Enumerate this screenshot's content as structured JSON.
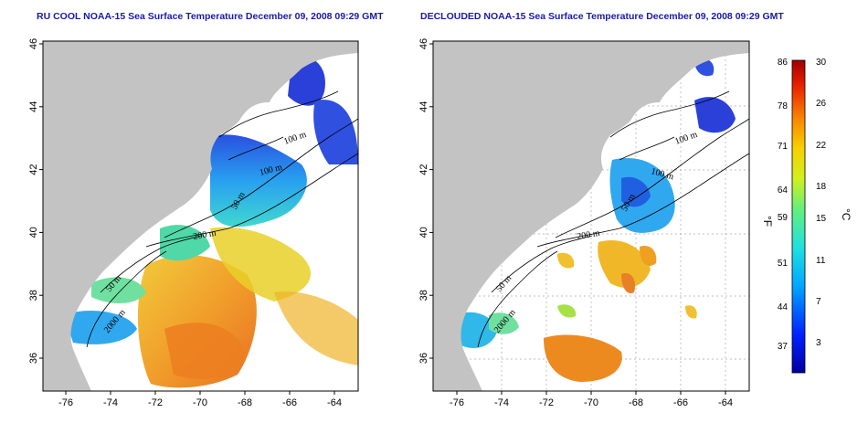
{
  "panels": [
    {
      "title": "RU COOL NOAA-15 Sea Surface Temperature December 09, 2008 09:29 GMT",
      "contour_labels": [
        "100 m",
        "100 m",
        "50 m",
        "200 m",
        "50 m",
        "2000 m"
      ]
    },
    {
      "title": "DECLOUDED NOAA-15 Sea Surface Temperature December 09, 2008 09:29 GMT",
      "contour_labels": [
        "100 m",
        "100 m",
        "50 m",
        "200 m",
        "50 m",
        "2000 m"
      ]
    }
  ],
  "axes": {
    "lon_ticks": [
      "-76",
      "-74",
      "-72",
      "-70",
      "-68",
      "-66",
      "-64"
    ],
    "lat_ticks": [
      "46",
      "44",
      "42",
      "40",
      "38",
      "36"
    ]
  },
  "colorbar": {
    "fahrenheit_labels": [
      "86",
      "78",
      "71",
      "64",
      "59",
      "51",
      "44",
      "37"
    ],
    "celsius_labels": [
      "30",
      "26",
      "22",
      "18",
      "15",
      "11",
      "7",
      "3"
    ],
    "left_unit": "°F",
    "right_unit": "°C"
  },
  "colors": {
    "land": "#c3c3c3",
    "cloud": "#ffffff",
    "title": "#1a1aa8"
  }
}
